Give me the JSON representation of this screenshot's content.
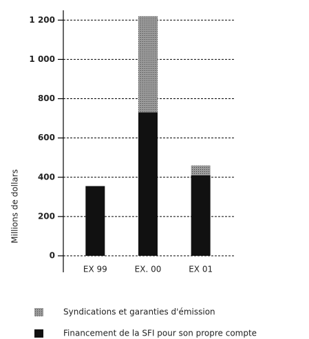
{
  "chart_data": {
    "type": "stacked_bar",
    "y_label": "Millions de dollars",
    "categories": [
      "EX 99",
      "EX. 00",
      "EX 01"
    ],
    "series": [
      {
        "name": "Financement de la SFI pour son propre compte",
        "color": "#111111",
        "values": [
          355,
          730,
          410
        ]
      },
      {
        "name": "Syndications et garanties d'émission",
        "color": "#8c8c8c",
        "values": [
          0,
          490,
          50
        ]
      }
    ],
    "ylim": [
      0,
      1250
    ],
    "yticks": [
      0,
      200,
      400,
      600,
      800,
      {
        "value": 1000,
        "label": "1 000"
      },
      {
        "value": 1200,
        "label": "1 200"
      }
    ],
    "grid": true
  }
}
